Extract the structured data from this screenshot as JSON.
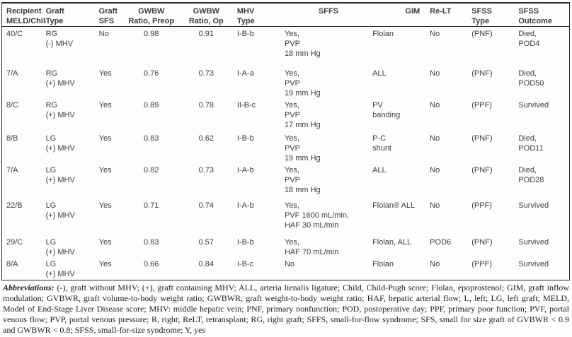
{
  "table": {
    "headers": [
      "Recipient\nMELD/Child",
      "Graft\nType",
      "Graft\nSFS",
      "GWBW\nRatio, Preop",
      "GWBW\nRatio, Op",
      "MHV\nType",
      "SFFS",
      "GIM",
      "Re-LT",
      "SFSS\nType",
      "SFSS\nOutcome"
    ],
    "rows": [
      [
        "40/C",
        "RG\n(-) MHV",
        "No",
        "0.98",
        "0.91",
        "I-B-b",
        "Yes,\nPVP\n18 mm Hg",
        "Flolan",
        "No",
        "(PNF)",
        "Died,\nPOD4"
      ],
      [
        "7/A",
        "RG\n(+) MHV",
        "Yes",
        "0.76",
        "0.73",
        "I-A-a",
        "Yes,\nPVP\n19 mm Hg",
        "ALL",
        "No",
        "(PNF)",
        "Died,\nPOD50"
      ],
      [
        "8/C",
        "RG\n(+) MHV",
        "Yes",
        "0.89",
        "0.78",
        "II-B-c",
        "Yes,\nPVP\n17 mm Hg",
        "PV\nbanding",
        "No",
        "(PPF)",
        "Survived"
      ],
      [
        "8/B",
        "LG\n(+) MHV",
        "Yes",
        "0.83",
        "0.62",
        "I-B-b",
        "Yes,\nPVP\n19 mm Hg",
        "P-C\nshunt",
        "No",
        "(PNF)",
        "Died,\nPOD11"
      ],
      [
        "7/A",
        "LG\n(+) MHV",
        "Yes",
        "0.82",
        "0.73",
        "I-A-b",
        "Yes,\nPVP\n18 mm Hg",
        "ALL",
        "No",
        "(PNF)",
        "Died,\nPOD28"
      ],
      [
        "22/B",
        "LG\n(+) MHV",
        "Yes",
        "0.71",
        "0.74",
        "I-A-b",
        "Yes,\nPVF 1600 mL/min,\nHAF 30 mL/min",
        "Flolan® ALL",
        "No",
        "(PPF)",
        "Survived"
      ],
      [
        "29/C",
        "LG\n(+) MHV",
        "Yes",
        "0.83",
        "0.57",
        "I-B-b",
        "Yes,\nHAF 70 mL/min",
        "Flolan, ALL",
        "POD6",
        "(PNF)",
        "Survived"
      ],
      [
        "8/A",
        "LG\n(+) MHV",
        "Yes",
        "0.66",
        "0.84",
        "I-B-c",
        "No",
        "Flolan",
        "No",
        "(PPF)",
        "Survived"
      ]
    ]
  },
  "footnote": {
    "lead": "Abbreviations:",
    "text": " (-), graft without MHV; (+), graft containing MHV; ALL, arteria lienalis ligature; Child, Child-Pugh score; Flolan, epoprostenol; GIM, graft inflow modulation; GVBWR, graft volume-to-body weight ratio; GWBWR, graft weight-to-body weight ratio; HAF, hepatic arterial flow; L, left; LG, left graft; MELD, Model of End-Stage Liver Disease score; MHV: middle hepatic vein; PNF, primary nonfunction; POD, postoperative day; PPF, primary poor function; PVF, portal venous flow; PVP, portal venous pressure; R, right; ReLT, retransplant; RG, right graft; SFFS, small-for-flow syndrome; SFS, small for size graft of GVBWR < 0.9 and GWBWR < 0.8; SFSS, small-for-size syndrome; Y, yes"
  }
}
